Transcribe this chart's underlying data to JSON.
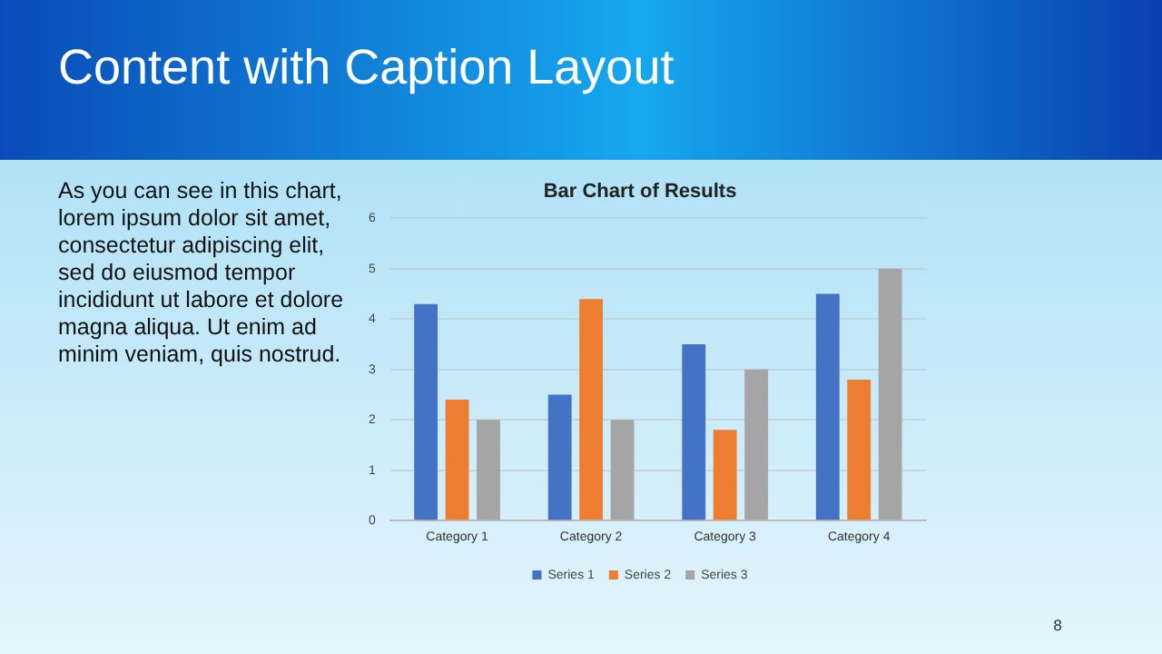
{
  "chart_data": {
    "type": "bar",
    "title": "Bar Chart of Results",
    "annotations": [
      "Content with Caption Layout",
      "As you can see in this chart, lorem ipsum dolor sit amet, consectetur adipiscing elit, sed do eiusmod tempor incididunt ut labore et dolore magna aliqua. Ut enim ad minim veniam, quis nostrud.",
      "8"
    ],
    "categories": [
      "Category 1",
      "Category 2",
      "Category 3",
      "Category 4"
    ],
    "series": [
      {
        "name": "Series 1",
        "color": "#4472c4",
        "values": [
          4.3,
          2.5,
          3.5,
          4.5
        ]
      },
      {
        "name": "Series 2",
        "color": "#ed7d31",
        "values": [
          2.4,
          4.4,
          1.8,
          2.8
        ]
      },
      {
        "name": "Series 3",
        "color": "#a5a5a5",
        "values": [
          2,
          2,
          3,
          5
        ]
      }
    ],
    "ylim": [
      0,
      6
    ],
    "yticks": [
      0,
      1,
      2,
      3,
      4,
      5,
      6
    ],
    "grid": "y",
    "legend": "bottom"
  }
}
